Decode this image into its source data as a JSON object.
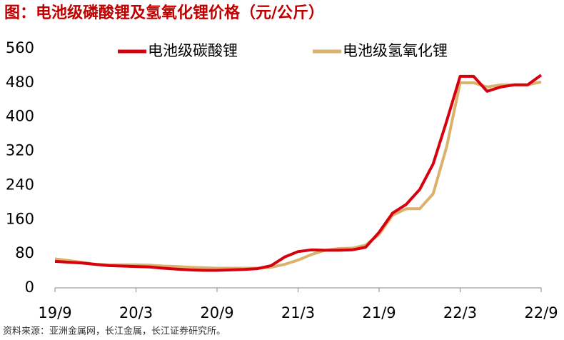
{
  "chart_data": {
    "type": "line",
    "title": "图：电池级磷酸锂及氢氧化锂价格（元/公斤）",
    "source": "资料来源：亚洲金属网，长江金属，长江证券研究所。",
    "categories": [
      "19/9",
      null,
      null,
      null,
      null,
      null,
      "20/3",
      null,
      null,
      null,
      null,
      null,
      "20/9",
      null,
      null,
      null,
      null,
      null,
      "21/3",
      null,
      null,
      null,
      null,
      null,
      "21/9",
      null,
      null,
      null,
      null,
      null,
      "22/3",
      null,
      null,
      null,
      null,
      null,
      "22/9"
    ],
    "series": [
      {
        "name": "电池级碳酸锂",
        "color": "#d7000f",
        "values": [
          62,
          60,
          58,
          55,
          52,
          51,
          50,
          49,
          46,
          44,
          42,
          41,
          41,
          42,
          43,
          45,
          52,
          72,
          85,
          89,
          88,
          88,
          89,
          95,
          130,
          175,
          195,
          230,
          290,
          390,
          495,
          495,
          460,
          470,
          475,
          475,
          498
        ]
      },
      {
        "name": "电池级氢氧化锂",
        "color": "#dbb26b",
        "values": [
          68,
          64,
          60,
          55,
          54,
          54,
          54,
          53,
          51,
          50,
          48,
          47,
          46,
          46,
          46,
          46,
          48,
          55,
          65,
          78,
          88,
          92,
          93,
          100,
          125,
          170,
          185,
          185,
          220,
          330,
          480,
          480,
          470,
          475,
          475,
          475,
          482
        ]
      }
    ],
    "ylim": [
      0,
      560
    ],
    "yticks": [
      0,
      80,
      160,
      240,
      320,
      400,
      480,
      560
    ],
    "grid": false,
    "legend": "top"
  }
}
